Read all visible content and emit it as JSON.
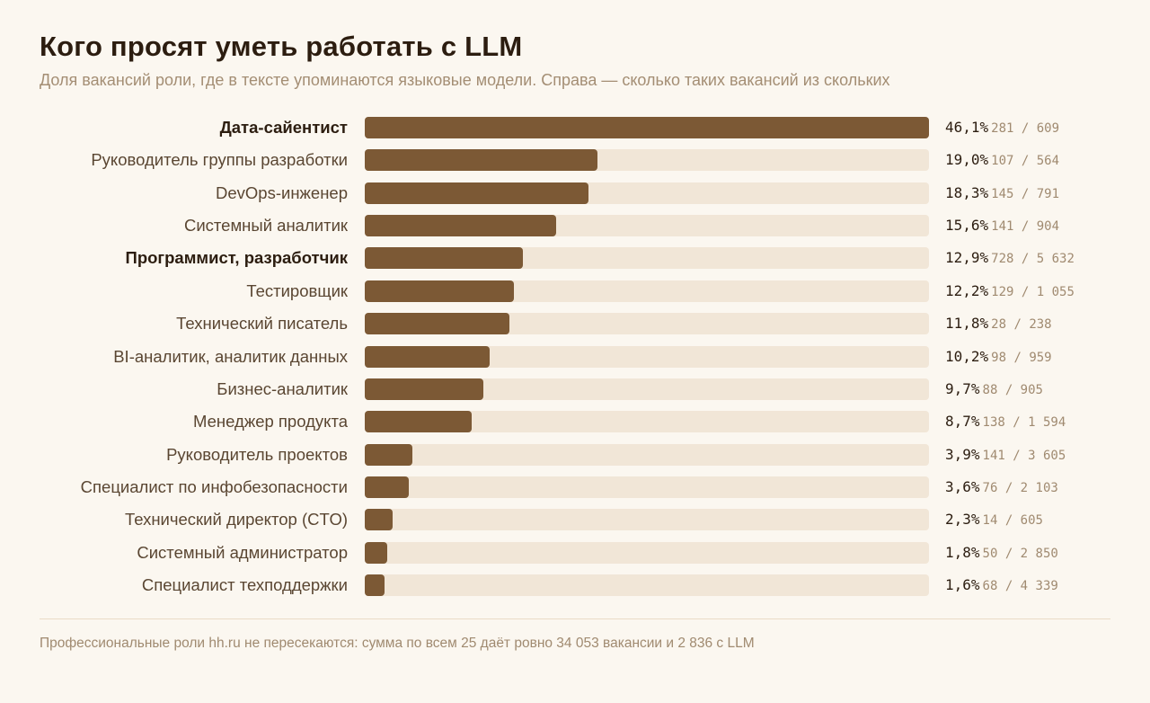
{
  "header": {
    "title": "Кого просят уметь работать с LLM",
    "subtitle": "Доля вакансий роли, где в тексте упоминаются языковые модели. Справа — сколько таких вакансий из скольких"
  },
  "chart_data": {
    "type": "bar",
    "orientation": "horizontal",
    "xlim": [
      0,
      46.1
    ],
    "grid": false,
    "colors": {
      "bar": "#7c5935",
      "track": "#f1e6d7"
    },
    "bars": [
      {
        "category": "Дата-сайентист",
        "value": 46.1,
        "value_label": "46,1%",
        "count_label": "281 / 609",
        "highlight": true
      },
      {
        "category": "Руководитель группы разработки",
        "value": 19.0,
        "value_label": "19,0%",
        "count_label": "107 / 564",
        "highlight": false
      },
      {
        "category": "DevOps-инженер",
        "value": 18.3,
        "value_label": "18,3%",
        "count_label": "145 / 791",
        "highlight": false
      },
      {
        "category": "Системный аналитик",
        "value": 15.6,
        "value_label": "15,6%",
        "count_label": "141 / 904",
        "highlight": false
      },
      {
        "category": "Программист, разработчик",
        "value": 12.9,
        "value_label": "12,9%",
        "count_label": "728 / 5 632",
        "highlight": true
      },
      {
        "category": "Тестировщик",
        "value": 12.2,
        "value_label": "12,2%",
        "count_label": "129 / 1 055",
        "highlight": false
      },
      {
        "category": "Технический писатель",
        "value": 11.8,
        "value_label": "11,8%",
        "count_label": "28 / 238",
        "highlight": false
      },
      {
        "category": "BI-аналитик, аналитик данных",
        "value": 10.2,
        "value_label": "10,2%",
        "count_label": "98 / 959",
        "highlight": false
      },
      {
        "category": "Бизнес-аналитик",
        "value": 9.7,
        "value_label": "9,7%",
        "count_label": "88 / 905",
        "highlight": false
      },
      {
        "category": "Менеджер продукта",
        "value": 8.7,
        "value_label": "8,7%",
        "count_label": "138 / 1 594",
        "highlight": false
      },
      {
        "category": "Руководитель проектов",
        "value": 3.9,
        "value_label": "3,9%",
        "count_label": "141 / 3 605",
        "highlight": false
      },
      {
        "category": "Специалист по инфобезопасности",
        "value": 3.6,
        "value_label": "3,6%",
        "count_label": "76 / 2 103",
        "highlight": false
      },
      {
        "category": "Технический директор (CTO)",
        "value": 2.3,
        "value_label": "2,3%",
        "count_label": "14 / 605",
        "highlight": false
      },
      {
        "category": "Системный администратор",
        "value": 1.8,
        "value_label": "1,8%",
        "count_label": "50 / 2 850",
        "highlight": false
      },
      {
        "category": "Специалист техподдержки",
        "value": 1.6,
        "value_label": "1,6%",
        "count_label": "68 / 4 339",
        "highlight": false
      }
    ]
  },
  "footer": {
    "note": "Профессиональные роли hh.ru не пересекаются: сумма по всем 25 даёт ровно 34 053 вакансии и 2 836 с LLM"
  }
}
